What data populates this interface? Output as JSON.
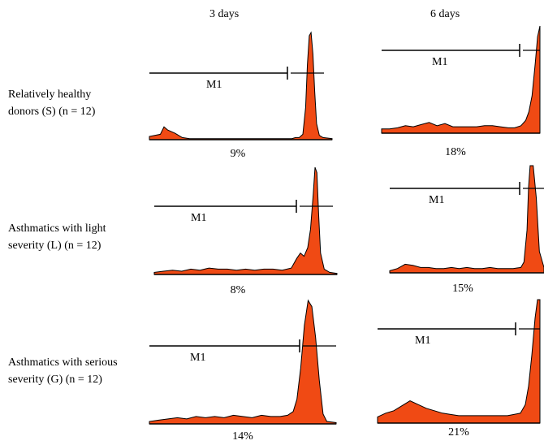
{
  "columns": [
    "3 days",
    "6 days"
  ],
  "rows": [
    {
      "line1": "Relatively healthy",
      "line2": "donors (S) (n = 12)"
    },
    {
      "line1": "Asthmatics with light",
      "line2": "severity (L) (n = 12)"
    },
    {
      "line1": "Asthmatics with serious",
      "line2": "severity (G) (n = 12)"
    }
  ],
  "colors": {
    "fill": "#f04a14",
    "line": "#000000"
  },
  "chart_data": [
    {
      "type": "area",
      "row": "Relatively healthy donors (S) (n = 12)",
      "column": "3 days",
      "marker_label": "M1",
      "percent": "9%",
      "x": [
        0,
        0.06,
        0.08,
        0.1,
        0.14,
        0.18,
        0.22,
        0.3,
        0.4,
        0.5,
        0.6,
        0.7,
        0.78,
        0.8,
        0.82,
        0.84,
        0.855,
        0.865,
        0.875,
        0.885,
        0.895,
        0.905,
        0.915,
        0.93,
        0.95,
        1
      ],
      "y": [
        0.03,
        0.05,
        0.12,
        0.09,
        0.06,
        0.02,
        0.01,
        0.01,
        0.01,
        0.01,
        0.01,
        0.01,
        0.01,
        0.02,
        0.02,
        0.05,
        0.3,
        0.7,
        0.97,
        1.0,
        0.8,
        0.45,
        0.15,
        0.04,
        0.02,
        0.01
      ]
    },
    {
      "type": "area",
      "row": "Relatively healthy donors (S) (n = 12)",
      "column": "6 days",
      "marker_label": "M1",
      "percent": "18%",
      "x": [
        0,
        0.05,
        0.1,
        0.15,
        0.2,
        0.25,
        0.3,
        0.35,
        0.4,
        0.45,
        0.5,
        0.55,
        0.6,
        0.65,
        0.7,
        0.75,
        0.8,
        0.84,
        0.88,
        0.91,
        0.93,
        0.95,
        0.97,
        0.985,
        1
      ],
      "y": [
        0.04,
        0.04,
        0.05,
        0.07,
        0.06,
        0.08,
        0.1,
        0.07,
        0.09,
        0.06,
        0.06,
        0.06,
        0.06,
        0.07,
        0.07,
        0.06,
        0.05,
        0.05,
        0.07,
        0.12,
        0.2,
        0.35,
        0.65,
        0.9,
        1.0
      ]
    },
    {
      "type": "area",
      "row": "Asthmatics with light severity (L) (n = 12)",
      "column": "3 days",
      "marker_label": "M1",
      "percent": "8%",
      "x": [
        0,
        0.05,
        0.1,
        0.15,
        0.2,
        0.25,
        0.3,
        0.35,
        0.4,
        0.45,
        0.5,
        0.55,
        0.6,
        0.65,
        0.7,
        0.75,
        0.78,
        0.8,
        0.82,
        0.84,
        0.855,
        0.87,
        0.88,
        0.89,
        0.9,
        0.91,
        0.93,
        0.96,
        1
      ],
      "y": [
        0.02,
        0.03,
        0.04,
        0.03,
        0.05,
        0.04,
        0.06,
        0.05,
        0.05,
        0.04,
        0.05,
        0.04,
        0.05,
        0.05,
        0.04,
        0.06,
        0.15,
        0.2,
        0.17,
        0.25,
        0.42,
        0.75,
        1.0,
        0.95,
        0.55,
        0.2,
        0.05,
        0.02,
        0.01
      ]
    },
    {
      "type": "area",
      "row": "Asthmatics with light severity (L) (n = 12)",
      "column": "6 days",
      "marker_label": "M1",
      "percent": "15%",
      "x": [
        0,
        0.05,
        0.1,
        0.15,
        0.2,
        0.25,
        0.3,
        0.35,
        0.4,
        0.45,
        0.5,
        0.55,
        0.6,
        0.65,
        0.7,
        0.75,
        0.8,
        0.85,
        0.87,
        0.89,
        0.9,
        0.91,
        0.93,
        0.95,
        0.97,
        1
      ],
      "y": [
        0.02,
        0.04,
        0.08,
        0.07,
        0.05,
        0.05,
        0.04,
        0.04,
        0.05,
        0.04,
        0.05,
        0.04,
        0.04,
        0.05,
        0.04,
        0.04,
        0.04,
        0.05,
        0.1,
        0.4,
        0.8,
        1.0,
        1.0,
        0.7,
        0.2,
        0.05
      ]
    },
    {
      "type": "area",
      "row": "Asthmatics with serious severity (G) (n = 12)",
      "column": "3 days",
      "marker_label": "M1",
      "percent": "14%",
      "x": [
        0,
        0.05,
        0.1,
        0.15,
        0.2,
        0.25,
        0.3,
        0.35,
        0.4,
        0.45,
        0.5,
        0.55,
        0.6,
        0.65,
        0.7,
        0.74,
        0.77,
        0.79,
        0.81,
        0.83,
        0.85,
        0.87,
        0.89,
        0.91,
        0.93,
        0.95,
        1
      ],
      "y": [
        0.02,
        0.03,
        0.04,
        0.05,
        0.04,
        0.06,
        0.05,
        0.06,
        0.05,
        0.07,
        0.06,
        0.05,
        0.07,
        0.06,
        0.06,
        0.07,
        0.1,
        0.2,
        0.45,
        0.8,
        1.0,
        0.95,
        0.7,
        0.35,
        0.08,
        0.02,
        0.01
      ]
    },
    {
      "type": "area",
      "row": "Asthmatics with serious severity (G) (n = 12)",
      "column": "6 days",
      "marker_label": "M1",
      "percent": "21%",
      "x": [
        0,
        0.05,
        0.1,
        0.15,
        0.2,
        0.25,
        0.3,
        0.35,
        0.4,
        0.45,
        0.5,
        0.55,
        0.6,
        0.65,
        0.7,
        0.75,
        0.8,
        0.84,
        0.88,
        0.91,
        0.93,
        0.95,
        0.97,
        0.985,
        1
      ],
      "y": [
        0.05,
        0.08,
        0.1,
        0.14,
        0.18,
        0.15,
        0.12,
        0.1,
        0.08,
        0.07,
        0.06,
        0.06,
        0.06,
        0.06,
        0.06,
        0.06,
        0.06,
        0.07,
        0.08,
        0.15,
        0.3,
        0.55,
        0.85,
        1.0,
        1.0
      ]
    }
  ]
}
